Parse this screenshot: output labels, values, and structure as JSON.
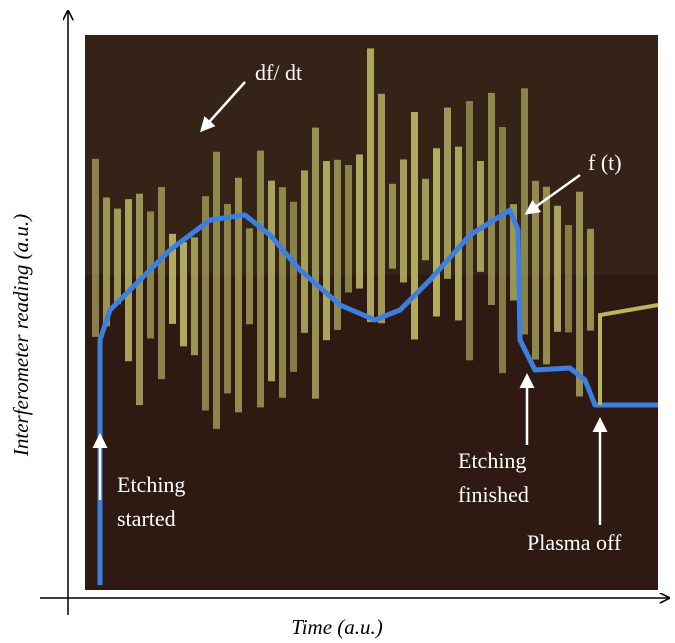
{
  "axes": {
    "x_label": "Time (a.u.)",
    "y_label": "Interferometer reading (a.u.)"
  },
  "annotations": {
    "derivative": "df/ dt",
    "signal": "f (t)",
    "etching_started": [
      "Etching",
      "started"
    ],
    "etching_finished": [
      "Etching",
      "finished"
    ],
    "plasma_off": "Plasma off"
  }
}
